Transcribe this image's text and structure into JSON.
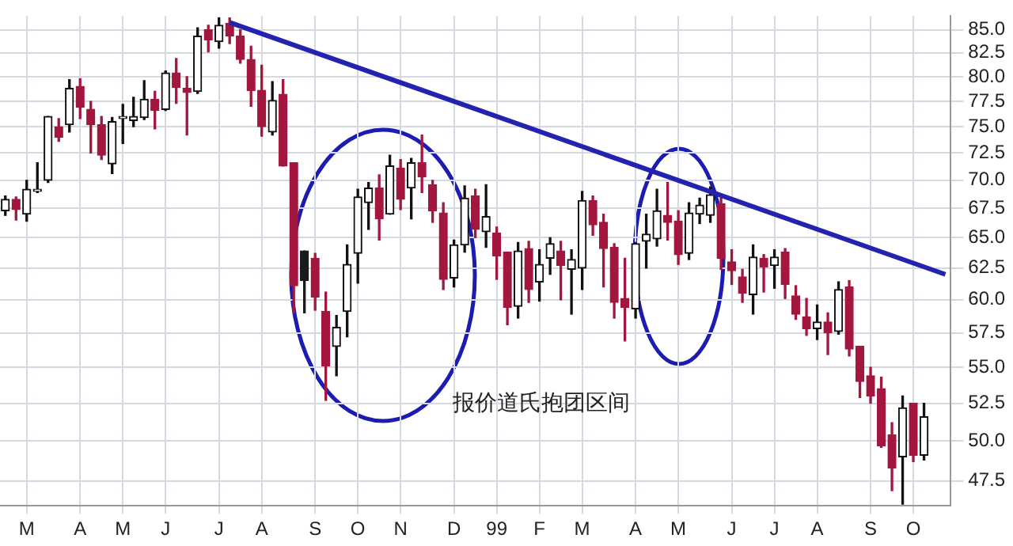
{
  "chart_data": {
    "type": "candlestick",
    "log": "y",
    "grid": true,
    "legend": false,
    "categories": [
      null,
      null,
      "M",
      null,
      null,
      null,
      null,
      "A",
      null,
      null,
      null,
      "M",
      null,
      null,
      null,
      "J",
      null,
      null,
      null,
      null,
      "J",
      null,
      null,
      null,
      "A",
      null,
      null,
      null,
      null,
      "S",
      null,
      null,
      null,
      "O",
      null,
      null,
      null,
      "N",
      null,
      null,
      null,
      null,
      "D",
      null,
      null,
      null,
      "99",
      null,
      null,
      null,
      "F",
      null,
      null,
      null,
      "M",
      null,
      null,
      null,
      null,
      "A",
      null,
      null,
      null,
      "M",
      null,
      null,
      null,
      null,
      "J",
      null,
      null,
      null,
      "J",
      null,
      null,
      null,
      "A",
      null,
      null,
      null,
      null,
      "S",
      null,
      null,
      null,
      "O",
      null,
      null,
      null
    ],
    "ylim": [
      46,
      86.5
    ],
    "yticks": [
      {
        "value": 47.5,
        "label": "47.5"
      },
      {
        "value": 50,
        "label": "50.0"
      },
      {
        "value": 52.5,
        "label": "52.5"
      },
      {
        "value": 55,
        "label": "55.0"
      },
      {
        "value": 57.5,
        "label": "57.5"
      },
      {
        "value": 60,
        "label": "60.0"
      },
      {
        "value": 62.5,
        "label": "62.5"
      },
      {
        "value": 65,
        "label": "65.0"
      },
      {
        "value": 67.5,
        "label": "67.5"
      },
      {
        "value": 70,
        "label": "70.0"
      },
      {
        "value": 72.5,
        "label": "72.5"
      },
      {
        "value": 75,
        "label": "75.0"
      },
      {
        "value": 77.5,
        "label": "77.5"
      },
      {
        "value": 80,
        "label": "80.0"
      },
      {
        "value": 82.5,
        "label": "82.5"
      },
      {
        "value": 85,
        "label": "85.0"
      }
    ],
    "annotations": [
      "报价道氏抱团区间"
    ],
    "series": [
      {
        "colors": [
          "#111111",
          "#a3173f",
          "#111111",
          "#111111",
          "#111111",
          "#a3173f",
          "#111111",
          "#a3173f",
          "#a3173f",
          "#a3173f",
          "#111111",
          "#111111",
          "#111111",
          "#111111",
          "#a3173f",
          "#111111",
          "#a3173f",
          "#a3173f",
          "#111111",
          "#a3173f",
          "#111111",
          "#a3173f",
          "#a3173f",
          "#a3173f",
          "#a3173f",
          "#111111",
          "#a3173f",
          "#a3173f",
          "#1a1a1a",
          "#a3173f",
          "#a3173f",
          "#111111",
          "#111111",
          "#111111",
          "#111111",
          "#a3173f",
          "#111111",
          "#a3173f",
          "#111111",
          "#a3173f",
          "#a3173f",
          "#a3173f",
          "#111111",
          "#111111",
          "#a3173f",
          "#111111",
          "#a3173f",
          "#a3173f",
          "#111111",
          "#a3173f",
          "#111111",
          "#111111",
          "#a3173f",
          "#111111",
          "#111111",
          "#a3173f",
          "#a3173f",
          "#a3173f",
          "#a3173f",
          "#111111",
          "#111111",
          "#111111",
          "#a3173f",
          "#a3173f",
          "#111111",
          "#111111",
          "#111111",
          "#a3173f",
          "#a3173f",
          "#a3173f",
          "#111111",
          "#a3173f",
          "#111111",
          "#a3173f",
          "#a3173f",
          "#a3173f",
          "#111111",
          "#a3173f",
          "#111111",
          "#a3173f",
          "#a3173f",
          "#a3173f",
          "#a3173f",
          "#a3173f",
          "#111111",
          "#a3173f",
          "#111111",
          null,
          null
        ],
        "ohlc": [
          [
            67.3,
            68.6,
            66.9,
            68.3
          ],
          [
            68.3,
            68.5,
            66.5,
            67.4
          ],
          [
            67.0,
            70.0,
            66.4,
            69.2
          ],
          [
            69.0,
            71.6,
            68.9,
            69.2
          ],
          [
            70.0,
            76.0,
            69.8,
            76.0
          ],
          [
            75.0,
            75.8,
            73.6,
            74.0
          ],
          [
            75.2,
            79.7,
            74.5,
            78.8
          ],
          [
            79.0,
            79.8,
            75.8,
            76.9
          ],
          [
            76.7,
            77.5,
            72.5,
            75.2
          ],
          [
            75.2,
            76.0,
            71.9,
            72.3
          ],
          [
            71.5,
            75.9,
            70.6,
            75.5
          ],
          [
            75.8,
            77.2,
            73.4,
            76.0
          ],
          [
            75.6,
            77.9,
            75.0,
            76.0
          ],
          [
            75.9,
            79.6,
            75.7,
            77.7
          ],
          [
            77.7,
            78.5,
            74.8,
            76.6
          ],
          [
            76.7,
            80.6,
            76.6,
            80.4
          ],
          [
            80.4,
            81.9,
            77.3,
            78.9
          ],
          [
            78.8,
            80.0,
            74.2,
            78.4
          ],
          [
            78.5,
            85.2,
            78.3,
            84.3
          ],
          [
            85.0,
            85.5,
            82.6,
            83.9
          ],
          [
            83.7,
            86.3,
            83.0,
            85.5
          ],
          [
            85.7,
            86.3,
            83.5,
            84.3
          ],
          [
            84.3,
            85.0,
            81.4,
            81.8
          ],
          [
            81.8,
            83.2,
            77.0,
            78.6
          ],
          [
            78.6,
            81.2,
            74.1,
            75.0
          ],
          [
            74.5,
            79.5,
            74.2,
            77.6
          ],
          [
            78.2,
            79.7,
            71.3,
            71.3
          ],
          [
            71.6,
            71.6,
            59.0,
            61.1
          ],
          [
            63.9,
            63.9,
            59.0,
            61.5
          ],
          [
            63.3,
            63.7,
            59.2,
            60.2
          ],
          [
            59.1,
            60.6,
            52.7,
            55.1
          ],
          [
            56.5,
            58.8,
            54.4,
            57.9
          ],
          [
            59.1,
            64.4,
            57.2,
            62.8
          ],
          [
            63.7,
            69.2,
            61.3,
            68.5
          ],
          [
            68.0,
            69.8,
            65.7,
            69.3
          ],
          [
            69.3,
            70.5,
            64.8,
            66.6
          ],
          [
            67.0,
            72.3,
            67.0,
            71.3
          ],
          [
            71.1,
            71.9,
            67.4,
            68.3
          ],
          [
            69.3,
            72.0,
            66.6,
            71.6
          ],
          [
            71.6,
            74.2,
            68.9,
            70.3
          ],
          [
            69.6,
            70.0,
            66.3,
            67.3
          ],
          [
            67.1,
            68.0,
            60.8,
            61.6
          ],
          [
            61.7,
            64.8,
            61.0,
            64.4
          ],
          [
            64.4,
            69.5,
            63.8,
            68.4
          ],
          [
            68.6,
            69.2,
            65.0,
            65.7
          ],
          [
            65.5,
            69.6,
            64.2,
            66.8
          ],
          [
            65.4,
            65.9,
            61.6,
            63.5
          ],
          [
            63.8,
            63.8,
            58.1,
            59.4
          ],
          [
            59.5,
            64.6,
            58.6,
            63.9
          ],
          [
            64.1,
            64.7,
            59.8,
            60.8
          ],
          [
            61.4,
            64.0,
            59.9,
            62.8
          ],
          [
            63.3,
            65.0,
            62.0,
            64.5
          ],
          [
            63.9,
            64.7,
            60.0,
            62.7
          ],
          [
            62.4,
            64.0,
            58.9,
            63.2
          ],
          [
            62.5,
            69.0,
            60.8,
            68.2
          ],
          [
            68.2,
            68.6,
            65.2,
            66.1
          ],
          [
            66.3,
            67.0,
            61.0,
            64.1
          ],
          [
            64.2,
            64.5,
            58.6,
            59.8
          ],
          [
            60.1,
            63.3,
            56.9,
            59.4
          ],
          [
            59.3,
            64.6,
            58.6,
            64.5
          ],
          [
            64.7,
            67.0,
            62.5,
            65.3
          ],
          [
            64.9,
            69.2,
            64.3,
            67.3
          ],
          [
            66.9,
            69.8,
            64.8,
            66.3
          ],
          [
            66.4,
            67.3,
            62.8,
            63.6
          ],
          [
            63.7,
            68.0,
            63.2,
            67.1
          ],
          [
            67.0,
            68.4,
            66.2,
            67.8
          ],
          [
            66.9,
            69.4,
            66.3,
            68.7
          ],
          [
            67.9,
            68.4,
            62.4,
            63.3
          ],
          [
            63.0,
            64.0,
            61.2,
            62.3
          ],
          [
            61.8,
            62.4,
            59.8,
            60.5
          ],
          [
            60.4,
            64.4,
            58.9,
            63.4
          ],
          [
            63.3,
            63.6,
            60.6,
            62.6
          ],
          [
            62.7,
            64.0,
            60.9,
            63.4
          ],
          [
            63.8,
            64.1,
            60.1,
            61.2
          ],
          [
            60.3,
            61.1,
            58.5,
            58.9
          ],
          [
            58.7,
            60.1,
            57.3,
            57.8
          ],
          [
            57.8,
            59.6,
            57.0,
            58.3
          ],
          [
            58.3,
            59.0,
            55.9,
            57.5
          ],
          [
            57.6,
            61.4,
            57.4,
            60.8
          ],
          [
            61.0,
            61.5,
            55.8,
            56.3
          ],
          [
            56.5,
            56.5,
            52.9,
            54.0
          ],
          [
            54.4,
            55.0,
            52.5,
            53.0
          ],
          [
            53.5,
            54.3,
            49.6,
            49.7
          ],
          [
            50.4,
            51.2,
            46.9,
            48.3
          ],
          [
            49.0,
            53.0,
            46.1,
            52.2
          ],
          [
            52.5,
            52.5,
            48.7,
            49.1
          ],
          [
            49.1,
            52.5,
            48.8,
            51.6
          ],
          null,
          null
        ]
      },
      {
        "type": "line",
        "color": "#2323b0",
        "values": [
          null,
          null,
          null,
          null,
          null,
          null,
          null,
          null,
          null,
          null,
          null,
          null,
          null,
          null,
          null,
          null,
          null,
          null,
          null,
          null,
          null,
          85.8,
          null,
          null,
          null,
          null,
          null,
          null,
          null,
          null,
          null,
          null,
          null,
          null,
          null,
          null,
          null,
          null,
          null,
          null,
          null,
          null,
          null,
          null,
          null,
          null,
          null,
          null,
          null,
          null,
          null,
          null,
          null,
          null,
          null,
          null,
          null,
          null,
          null,
          null,
          null,
          null,
          null,
          null,
          null,
          null,
          null,
          null,
          null,
          null,
          null,
          null,
          null,
          null,
          null,
          null,
          null,
          null,
          null,
          null,
          null,
          null,
          null,
          null,
          null,
          null,
          null,
          null,
          62.0
        ]
      }
    ]
  }
}
